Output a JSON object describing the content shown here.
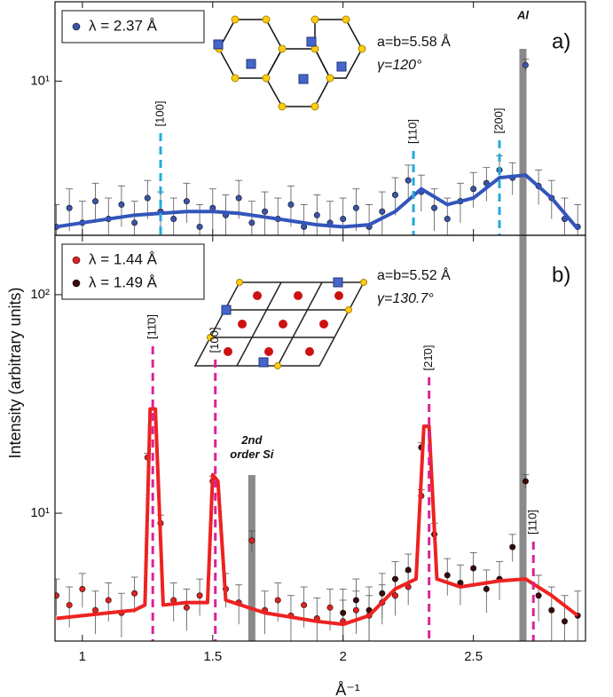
{
  "chart_data": [
    {
      "type": "scatter",
      "panel_label": "a)",
      "xlim": [
        0.895,
        2.93
      ],
      "ylim": [
        2.6,
        20
      ],
      "log_y": true,
      "yticks": [
        {
          "value": 10,
          "label": "10¹"
        }
      ],
      "legend": "upper left",
      "series": [
        {
          "name": "λ = 2.37 Å",
          "color": "#3a55a8",
          "x": [
            0.9,
            0.95,
            1.0,
            1.05,
            1.1,
            1.15,
            1.2,
            1.25,
            1.3,
            1.35,
            1.4,
            1.45,
            1.5,
            1.55,
            1.6,
            1.65,
            1.7,
            1.75,
            1.8,
            1.85,
            1.9,
            1.95,
            2.0,
            2.05,
            2.1,
            2.15,
            2.2,
            2.25,
            2.3,
            2.35,
            2.4,
            2.45,
            2.5,
            2.55,
            2.6,
            2.65,
            2.7,
            2.75,
            2.8,
            2.85,
            2.9
          ],
          "values": [
            2.8,
            3.3,
            2.9,
            3.5,
            3.0,
            3.4,
            2.9,
            3.6,
            3.2,
            3.0,
            3.5,
            2.8,
            3.3,
            3.1,
            3.6,
            2.9,
            3.2,
            3.0,
            3.4,
            2.8,
            3.1,
            2.9,
            3.0,
            3.3,
            2.8,
            3.2,
            3.7,
            4.2,
            3.8,
            3.3,
            3.0,
            3.5,
            3.9,
            4.1,
            4.6,
            4.3,
            11.5,
            4.0,
            3.6,
            3.0,
            2.8
          ],
          "errors": [
            0.6,
            0.6,
            0.6,
            0.6,
            0.6,
            0.6,
            0.6,
            0.6,
            0.6,
            0.6,
            0.6,
            0.6,
            0.6,
            0.6,
            0.6,
            0.6,
            0.6,
            0.6,
            0.6,
            0.6,
            0.6,
            0.6,
            0.6,
            0.6,
            0.6,
            0.6,
            0.6,
            0.6,
            0.6,
            0.6,
            0.6,
            0.6,
            0.6,
            0.6,
            0.6,
            0.6,
            0.6,
            0.6,
            0.6,
            0.6,
            0.6
          ]
        }
      ],
      "fit": {
        "color": "#3355bb",
        "x": [
          0.9,
          1.0,
          1.1,
          1.2,
          1.3,
          1.4,
          1.5,
          1.6,
          1.7,
          1.8,
          1.9,
          2.0,
          2.1,
          2.2,
          2.3,
          2.4,
          2.5,
          2.6,
          2.7,
          2.8,
          2.9
        ],
        "values": [
          2.8,
          2.9,
          3.0,
          3.1,
          3.15,
          3.2,
          3.2,
          3.15,
          3.05,
          2.95,
          2.85,
          2.8,
          2.85,
          3.2,
          3.9,
          3.4,
          3.6,
          4.3,
          4.4,
          3.6,
          2.75
        ]
      },
      "notes": [
        "a=b=5.58 Å",
        "γ=120°"
      ],
      "reference_lines": [
        {
          "text": "[100]",
          "x": 1.3,
          "color": "#22aadd"
        },
        {
          "text": "[110]",
          "x": 2.27,
          "color": "#22aadd"
        },
        {
          "text": "[200]",
          "x": 2.6,
          "color": "#22aadd"
        }
      ],
      "bands": [
        {
          "text": "Al",
          "x": 2.69
        }
      ]
    },
    {
      "type": "scatter",
      "panel_label": "b)",
      "xlim": [
        0.895,
        2.93
      ],
      "ylim": [
        2.6,
        187
      ],
      "log_y": true,
      "xticks": [
        1,
        1.5,
        2,
        2.5
      ],
      "yticks": [
        {
          "value": 10,
          "label": "10¹"
        },
        {
          "value": 100,
          "label": "10²"
        }
      ],
      "xlabel": "Å⁻¹",
      "ylabel": "Intensity (arbitrary units)",
      "legend": "upper left",
      "series": [
        {
          "name": "λ = 1.44 Å",
          "color": "#e02020",
          "x": [
            0.9,
            0.95,
            1.0,
            1.05,
            1.1,
            1.15,
            1.2,
            1.25,
            1.3,
            1.35,
            1.4,
            1.45,
            1.5,
            1.55,
            1.6,
            1.65,
            1.7,
            1.75,
            1.8,
            1.85,
            1.9,
            1.95,
            2.0,
            2.05,
            2.1,
            2.15,
            2.2,
            2.25,
            2.3
          ],
          "values": [
            4.2,
            3.8,
            4.5,
            3.6,
            4.0,
            3.5,
            4.3,
            18,
            9,
            4.0,
            3.7,
            4.2,
            14,
            4.5,
            3.9,
            7.5,
            3.6,
            4.0,
            3.4,
            3.8,
            3.3,
            3.7,
            3.2,
            3.6,
            3.4,
            3.9,
            4.2,
            4.6,
            12
          ],
          "errors": [
            0.8,
            0.8,
            0.8,
            0.8,
            0.8,
            0.8,
            0.8,
            0.8,
            0.8,
            0.8,
            0.8,
            0.8,
            0.8,
            0.8,
            0.8,
            0.8,
            0.8,
            0.8,
            0.8,
            0.8,
            0.8,
            0.8,
            0.8,
            0.8,
            0.8,
            0.8,
            0.8,
            0.8,
            0.8
          ]
        },
        {
          "name": "λ = 1.49 Å",
          "color": "#3a0a0a",
          "x": [
            2.0,
            2.05,
            2.1,
            2.15,
            2.2,
            2.25,
            2.3,
            2.35,
            2.4,
            2.45,
            2.5,
            2.55,
            2.6,
            2.65,
            2.7,
            2.75,
            2.8,
            2.85,
            2.9
          ],
          "values": [
            3.5,
            4.0,
            3.6,
            4.3,
            5.0,
            5.5,
            20,
            8,
            5.2,
            4.8,
            5.6,
            4.5,
            5.0,
            7.0,
            14,
            4.2,
            3.6,
            3.2,
            3.4
          ],
          "errors": [
            1.0,
            1.0,
            1.0,
            1.0,
            1.0,
            1.0,
            1.0,
            1.0,
            1.0,
            1.0,
            1.0,
            1.0,
            1.0,
            1.0,
            1.0,
            1.0,
            1.0,
            1.0,
            1.0
          ]
        }
      ],
      "fit": {
        "color": "#ee2222",
        "x": [
          0.9,
          1.0,
          1.1,
          1.2,
          1.24,
          1.26,
          1.28,
          1.31,
          1.4,
          1.48,
          1.5,
          1.52,
          1.55,
          1.7,
          1.9,
          2.0,
          2.1,
          2.2,
          2.28,
          2.31,
          2.33,
          2.36,
          2.45,
          2.6,
          2.7,
          2.8,
          2.9
        ],
        "values": [
          3.3,
          3.4,
          3.5,
          3.6,
          3.8,
          30,
          30,
          3.8,
          3.9,
          3.9,
          15,
          14,
          4.0,
          3.5,
          3.2,
          3.1,
          3.4,
          4.5,
          5,
          25,
          25,
          5,
          4.6,
          4.9,
          5.0,
          4.2,
          3.4
        ]
      },
      "notes": [
        "a=b=5.52 Å",
        "γ=130.7°"
      ],
      "reference_lines": [
        {
          "text": "[11̄0]",
          "x": 1.27,
          "color": "#dd2299"
        },
        {
          "text": "[100]",
          "x": 1.51,
          "color": "#dd2299"
        },
        {
          "text": "[21̄0]",
          "x": 2.33,
          "color": "#dd2299"
        },
        {
          "text": "[110]",
          "x": 2.73,
          "color": "#dd2299"
        }
      ],
      "bands": [
        {
          "text": "2nd order Si",
          "x": 1.65
        },
        {
          "text": "Al",
          "x": 2.69
        }
      ]
    }
  ]
}
